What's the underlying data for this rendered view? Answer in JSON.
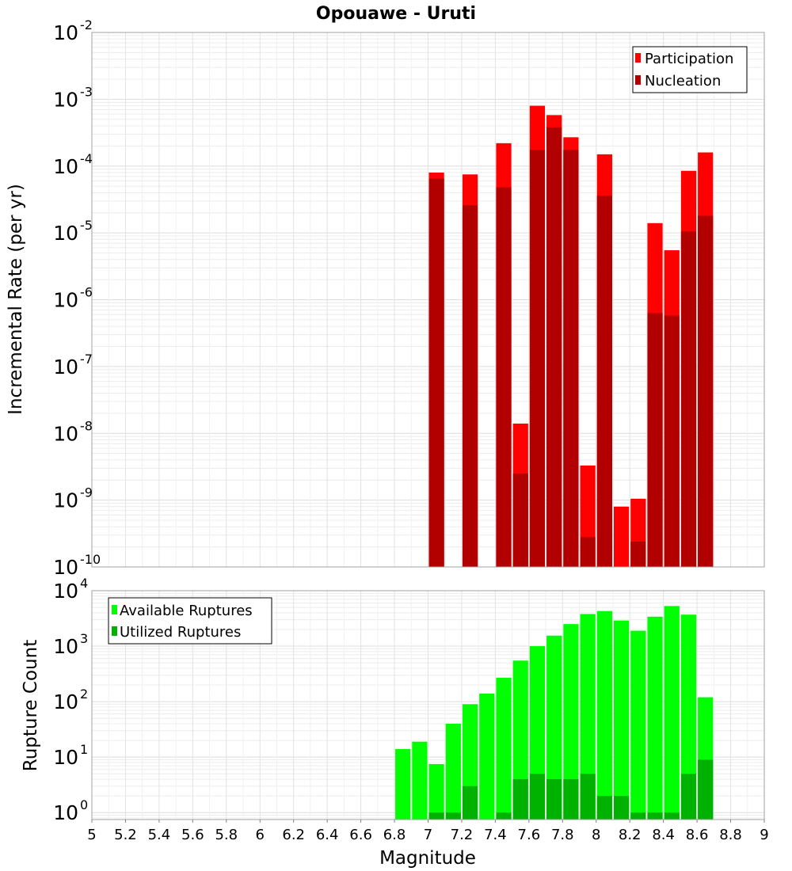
{
  "chart_data": [
    {
      "type": "bar",
      "title": "Opouawe - Uruti",
      "xlabel": "",
      "ylabel": "Incremental Rate (per yr)",
      "yscale": "log",
      "ylim": [
        1e-10,
        0.01
      ],
      "xlim": [
        5,
        9
      ],
      "bin_width": 0.1,
      "x": [
        7.05,
        7.25,
        7.45,
        7.55,
        7.65,
        7.75,
        7.85,
        7.95,
        8.05,
        8.15,
        8.25,
        8.35,
        8.45,
        8.55,
        8.65
      ],
      "series": [
        {
          "name": "Participation",
          "color": "#ff0000",
          "values": [
            8e-05,
            7.5e-05,
            0.00022,
            1.4e-08,
            0.0008,
            0.00058,
            0.00027,
            3.3e-09,
            0.00015,
            8e-10,
            1.05e-09,
            1.4e-05,
            5.5e-06,
            8.5e-05,
            0.00016
          ]
        },
        {
          "name": "Nucleation",
          "color": "#b20000",
          "values": [
            6.5e-05,
            2.6e-05,
            4.8e-05,
            2.5e-09,
            0.000175,
            0.00038,
            0.000175,
            2.8e-10,
            3.6e-05,
            null,
            2.4e-10,
            6.3e-07,
            5.8e-07,
            1.05e-05,
            1.8e-05
          ]
        }
      ],
      "legend": [
        "Participation",
        "Nucleation"
      ],
      "legend_position": "top-right",
      "grid": true,
      "y_tick_base": "10",
      "y_tick_exponents": [
        "-10",
        "-9",
        "-8",
        "-7",
        "-6",
        "-5",
        "-4",
        "-3",
        "-2"
      ]
    },
    {
      "type": "bar",
      "title": "",
      "xlabel": "Magnitude",
      "ylabel": "Rupture Count",
      "yscale": "log",
      "ylim": [
        0.75,
        10000
      ],
      "xlim": [
        5,
        9
      ],
      "bin_width": 0.1,
      "x": [
        6.85,
        6.95,
        7.05,
        7.15,
        7.25,
        7.35,
        7.45,
        7.55,
        7.65,
        7.75,
        7.85,
        7.95,
        8.05,
        8.15,
        8.25,
        8.35,
        8.45,
        8.55,
        8.65
      ],
      "series": [
        {
          "name": "Available Ruptures",
          "color": "#00ff00",
          "values": [
            14,
            19,
            7.5,
            40,
            90,
            140,
            270,
            550,
            1000,
            1550,
            2500,
            3800,
            4300,
            2900,
            1900,
            3400,
            5300,
            3700,
            120
          ]
        },
        {
          "name": "Utilized Ruptures",
          "color": "#00b200",
          "values": [
            null,
            null,
            1,
            1,
            3,
            null,
            1,
            4,
            5,
            4,
            4,
            5,
            2,
            2,
            1,
            1,
            1,
            5,
            9
          ]
        }
      ],
      "legend": [
        "Available Ruptures",
        "Utilized Ruptures"
      ],
      "legend_position": "top-left",
      "grid": true,
      "y_tick_base": "10",
      "y_tick_exponents": [
        "0",
        "1",
        "2",
        "3",
        "4"
      ],
      "x_ticks": [
        "5",
        "5.2",
        "5.4",
        "5.6",
        "5.8",
        "6",
        "6.2",
        "6.4",
        "6.6",
        "6.8",
        "7",
        "7.2",
        "7.4",
        "7.6",
        "7.8",
        "8",
        "8.2",
        "8.4",
        "8.6",
        "8.8",
        "9"
      ]
    }
  ]
}
